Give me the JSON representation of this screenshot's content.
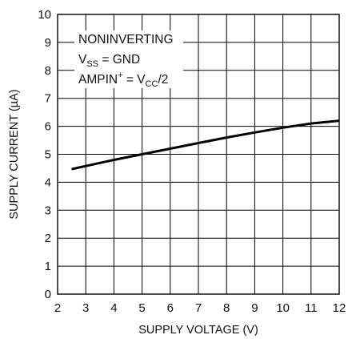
{
  "chart_data": {
    "type": "line",
    "title": "",
    "xlabel": "SUPPLY VOLTAGE (V)",
    "ylabel": "SUPPLY CURRENT (µA)",
    "xlim": [
      2,
      12
    ],
    "ylim": [
      0,
      10
    ],
    "x_ticks": [
      "2",
      "3",
      "4",
      "5",
      "6",
      "7",
      "8",
      "9",
      "10",
      "11",
      "12"
    ],
    "y_ticks": [
      "0",
      "1",
      "2",
      "3",
      "4",
      "5",
      "6",
      "7",
      "8",
      "9",
      "10"
    ],
    "grid": true,
    "series": [
      {
        "x": [
          2.5,
          3,
          4,
          5,
          6,
          7,
          8,
          9,
          10,
          11,
          12
        ],
        "y": [
          4.47,
          4.58,
          4.8,
          5.0,
          5.2,
          5.4,
          5.6,
          5.78,
          5.95,
          6.1,
          6.2
        ]
      }
    ],
    "annotation": {
      "line1": "NONINVERTING",
      "line2_main": "V",
      "line2_sub": "SS",
      "line2_rest": " = GND",
      "line3_main": "AMPIN",
      "line3_sup": "+",
      "line3_mid": " = V",
      "line3_sub": "CC",
      "line3_rest": "/2"
    }
  }
}
